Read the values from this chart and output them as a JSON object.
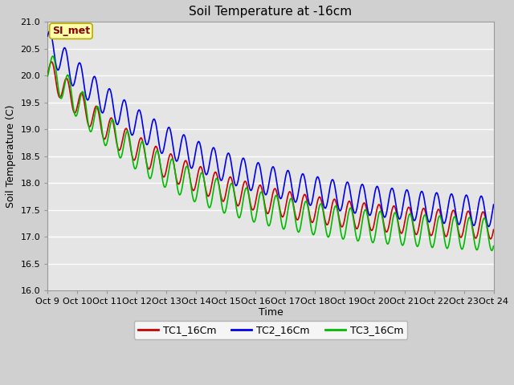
{
  "title": "Soil Temperature at -16cm",
  "ylabel": "Soil Temperature (C)",
  "xlabel": "Time",
  "ylim": [
    16.0,
    21.0
  ],
  "yticks": [
    16.0,
    16.5,
    17.0,
    17.5,
    18.0,
    18.5,
    19.0,
    19.5,
    20.0,
    20.5,
    21.0
  ],
  "xtick_labels": [
    "Oct 9",
    "Oct 10",
    "Oct 11",
    "Oct 12",
    "Oct 13",
    "Oct 14",
    "Oct 15",
    "Oct 16",
    "Oct 17",
    "Oct 18",
    "Oct 19",
    "Oct 20",
    "Oct 21",
    "Oct 22",
    "Oct 23",
    "Oct 24"
  ],
  "plot_bg": "#e5e5e5",
  "fig_bg": "#d0d0d0",
  "grid_color": "#ffffff",
  "legend_entries": [
    "TC1_16Cm",
    "TC2_16Cm",
    "TC3_16Cm"
  ],
  "line_colors": [
    "#cc0000",
    "#0000ee",
    "#00bb00"
  ],
  "watermark_text": "SI_met",
  "watermark_fg": "#880000",
  "watermark_bg": "#ffffaa",
  "watermark_border": "#bbaa00",
  "title_fontsize": 11,
  "axis_fontsize": 9,
  "tick_fontsize": 8,
  "legend_fontsize": 9,
  "linewidth": 1.2
}
